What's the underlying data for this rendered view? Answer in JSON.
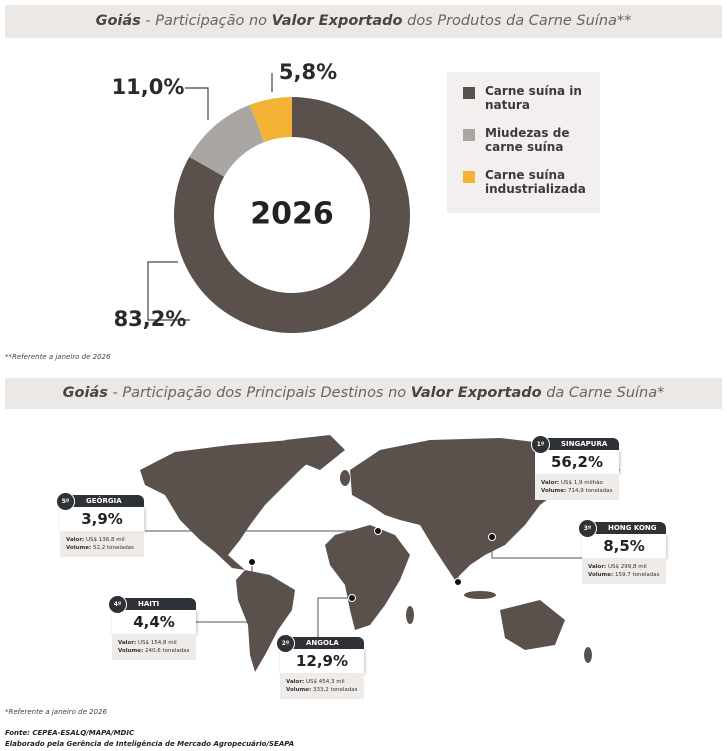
{
  "chart_data": {
    "type": "pie",
    "title_parts": [
      {
        "text": "Goiás",
        "bold": true
      },
      {
        "text": " - Participação no ",
        "bold": false
      },
      {
        "text": "Valor Exportado",
        "bold": true
      },
      {
        "text": " dos Produtos da Carne Suína**",
        "bold": false
      }
    ],
    "center_label": "2026",
    "categories": [
      "Carne suína in natura",
      "Miudezas de carne suína",
      "Carne suína industrializada"
    ],
    "values": [
      83.2,
      11.0,
      5.8
    ],
    "value_labels": [
      "83,2%",
      "11,0%",
      "5,8%"
    ],
    "colors": [
      "#5a514d",
      "#aaa6a4",
      "#f5b335"
    ],
    "footnote": "**Referente a janeiro de 2026"
  },
  "map": {
    "title_parts": [
      {
        "text": "Goiás",
        "bold": true
      },
      {
        "text": " - Participação dos Principais Destinos no ",
        "bold": false
      },
      {
        "text": "Valor Exportado",
        "bold": true
      },
      {
        "text": " da Carne Suína*",
        "bold": false
      }
    ],
    "destinations": [
      {
        "rank": "1º",
        "name": "SINGAPURA",
        "share": "56,2%",
        "valor_label": "Valor:",
        "valor": "US$ 1,9 milhão",
        "volume_label": "Volume:",
        "volume": "714,9 toneladas"
      },
      {
        "rank": "3º",
        "name": "HONG KONG",
        "share": "8,5%",
        "valor_label": "Valor:",
        "valor": "US$ 299,8 mil",
        "volume_label": "Volume:",
        "volume": "159,7 toneladas"
      },
      {
        "rank": "5º",
        "name": "GEÓRGIA",
        "share": "3,9%",
        "valor_label": "Valor:",
        "valor": "US$ 136,8 mil",
        "volume_label": "Volume:",
        "volume": "52,2 toneladas"
      },
      {
        "rank": "4º",
        "name": "HAITI",
        "share": "4,4%",
        "valor_label": "Valor:",
        "valor": "US$ 154,8 mil",
        "volume_label": "Volume:",
        "volume": "240,6 toneladas"
      },
      {
        "rank": "2º",
        "name": "ANGOLA",
        "share": "12,9%",
        "valor_label": "Valor:",
        "valor": "US$ 454,3 mil",
        "volume_label": "Volume:",
        "volume": "333,2 toneladas"
      }
    ],
    "footnote": "*Referente a janeiro de 2026"
  },
  "source": "Fonte: CEPEA-ESALQ/MAPA/MDIC",
  "credit": "Elaborado pela Gerência de Inteligência de Mercado Agropecuário/SEAPA"
}
